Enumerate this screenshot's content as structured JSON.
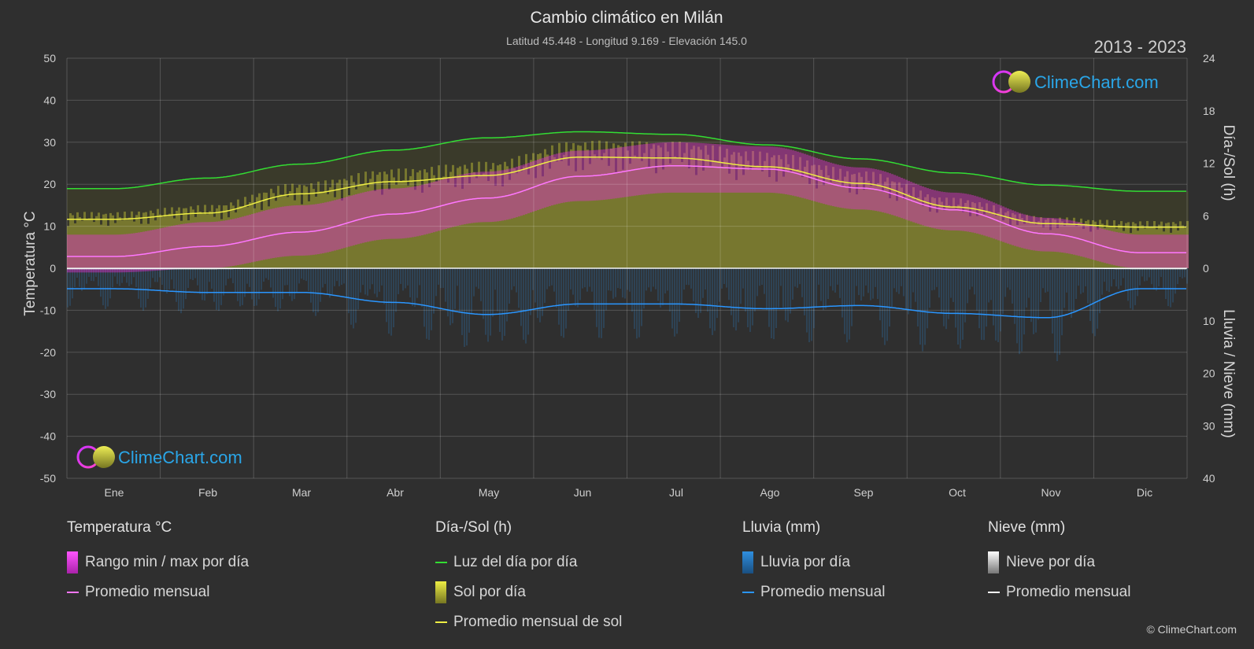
{
  "header": {
    "title": "Cambio climático en Milán",
    "subtitle": "Latitud 45.448 - Longitud 9.169 - Elevación 145.0",
    "years": "2013 - 2023"
  },
  "logo_text": "ClimeChart.com",
  "copyright": "© ClimeChart.com",
  "colors": {
    "background": "#2f2f2f",
    "daylight": "#33dd33",
    "sun_band": "#aaaa33",
    "sun_avg": "#eeee44",
    "temp_band": "#dd33cc",
    "temp_avg": "#ff77ff",
    "rain": "#2f8fe0",
    "rain_avg": "#2a96ff",
    "snow_avg": "#ffffff",
    "logo_text": "#2aa6e8"
  },
  "chart_data": {
    "type": "area",
    "months": [
      "Ene",
      "Feb",
      "Mar",
      "Abr",
      "May",
      "Jun",
      "Jul",
      "Ago",
      "Sep",
      "Oct",
      "Nov",
      "Dic"
    ],
    "left_axis": {
      "label": "Temperatura °C",
      "min": -50,
      "max": 50,
      "ticks": [
        50,
        40,
        30,
        20,
        10,
        0,
        -10,
        -20,
        -30,
        -40,
        -50
      ]
    },
    "right_axis_top": {
      "label": "Día-/Sol (h)",
      "min": 0,
      "max": 24,
      "ticks": [
        24,
        18,
        12,
        6,
        0
      ]
    },
    "right_axis_bottom": {
      "label": "Lluvia / Nieve (mm)",
      "min": 0,
      "max": 40,
      "ticks": [
        0,
        10,
        20,
        30,
        40
      ]
    },
    "grid": true,
    "series": [
      {
        "name": "Luz del día por día",
        "unit": "h",
        "values": [
          9.1,
          10.3,
          11.9,
          13.5,
          14.9,
          15.6,
          15.3,
          14.1,
          12.5,
          10.9,
          9.5,
          8.8
        ]
      },
      {
        "name": "Promedio mensual de sol",
        "unit": "h",
        "values": [
          5.6,
          6.3,
          8.5,
          9.9,
          10.6,
          12.7,
          12.6,
          11.6,
          9.7,
          7.0,
          5.1,
          4.7
        ]
      },
      {
        "name": "Promedio mensual",
        "group": "Temperatura °C",
        "unit": "°C",
        "values": [
          2.8,
          5.2,
          8.6,
          12.9,
          16.7,
          21.9,
          24.4,
          23.6,
          19.1,
          13.9,
          8.2,
          3.7
        ]
      },
      {
        "name": "Promedio mensual",
        "group": "Lluvia (mm)",
        "unit": "mm",
        "values": [
          3.9,
          4.6,
          4.6,
          6.5,
          8.8,
          6.8,
          6.8,
          7.7,
          7.1,
          8.6,
          9.4,
          3.9
        ]
      },
      {
        "name": "Promedio mensual",
        "group": "Nieve (mm)",
        "unit": "mm",
        "values": [
          0.1,
          0.1,
          0.0,
          0.0,
          0.0,
          0.0,
          0.0,
          0.0,
          0.0,
          0.0,
          0.0,
          0.1
        ]
      },
      {
        "name": "Rango min / max por día",
        "unit": "°C",
        "min_values": [
          -1,
          0,
          3,
          7,
          11,
          16,
          18,
          18,
          14,
          9,
          4,
          0
        ],
        "max_values": [
          8,
          11,
          15,
          19,
          23,
          28,
          30,
          29,
          24,
          18,
          12,
          8
        ]
      }
    ]
  },
  "legend": {
    "temperature": {
      "title": "Temperatura °C",
      "range": "Rango min / max por día",
      "avg": "Promedio mensual"
    },
    "daysun": {
      "title": "Día-/Sol (h)",
      "daylight": "Luz del día por día",
      "sun": "Sol por día",
      "sun_avg": "Promedio mensual de sol"
    },
    "rain": {
      "title": "Lluvia (mm)",
      "daily": "Lluvia por día",
      "avg": "Promedio mensual"
    },
    "snow": {
      "title": "Nieve (mm)",
      "daily": "Nieve por día",
      "avg": "Promedio mensual"
    }
  }
}
